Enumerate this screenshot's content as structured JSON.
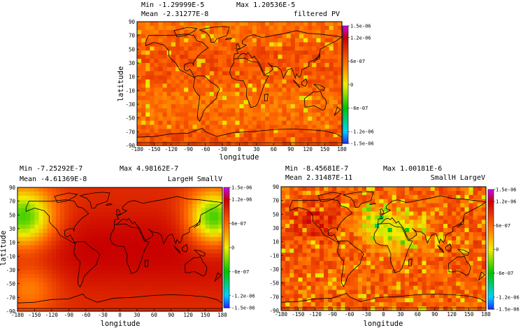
{
  "chart_data": [
    {
      "type": "heatmap",
      "min_label": "Min -1.29999E-5",
      "max_label": "Max 1.20536E-5",
      "mean_label": "Mean -2.31277E-8",
      "title": "filtered PV",
      "xlabel": "longitude",
      "ylabel": "latitude",
      "xlim": [
        -180,
        180
      ],
      "ylim": [
        -90,
        90
      ],
      "x_ticks": [
        "-180",
        "-150",
        "-120",
        "-90",
        "-60",
        "-30",
        "0",
        "30",
        "60",
        "90",
        "120",
        "150",
        "180"
      ],
      "y_ticks": [
        "90",
        "70",
        "50",
        "30",
        "10",
        "-10",
        "-30",
        "-50",
        "-70",
        "-90"
      ],
      "colorbar_ticks": [
        "1.5e-06",
        "1.2e-06",
        "6e-07",
        "0",
        "-6e-07",
        "-1.2e-06",
        "-1.5e-06"
      ],
      "colorbar_values": [
        1.5e-06,
        1.2e-06,
        6e-07,
        0,
        -6e-07,
        -1.2e-06,
        -1.5e-06
      ],
      "pattern": "noisy",
      "colors": {
        "vmin": "#1e2aff",
        "low": "#00d0ff",
        "mid_low": "#00c400",
        "zero": "#f2ee00",
        "mid_high": "#ff6600",
        "high": "#c80000",
        "vmax": "#d000ff"
      }
    },
    {
      "type": "heatmap",
      "min_label": "Min -7.25292E-7",
      "max_label": "Max 4.98162E-7",
      "mean_label": "Mean -4.61369E-8",
      "title": "LargeH SmallV",
      "xlabel": "longitude",
      "ylabel": "latitude",
      "xlim": [
        -180,
        180
      ],
      "ylim": [
        -90,
        90
      ],
      "x_ticks": [
        "-180",
        "-150",
        "-120",
        "-90",
        "-60",
        "-30",
        "0",
        "30",
        "60",
        "90",
        "120",
        "150",
        "180"
      ],
      "y_ticks": [
        "90",
        "70",
        "50",
        "30",
        "10",
        "-10",
        "-30",
        "-50",
        "-70",
        "-90"
      ],
      "colorbar_ticks": [
        "1.5e-06",
        "1.2e-06",
        "6e-07",
        "0",
        "-6e-07",
        "-1.2e-06",
        "-1.5e-06"
      ],
      "colorbar_values": [
        1.5e-06,
        1.2e-06,
        6e-07,
        0,
        -6e-07,
        -1.2e-06,
        -1.5e-06
      ],
      "pattern": "smooth",
      "colors": {
        "vmin": "#1e2aff",
        "low": "#00d0ff",
        "mid_low": "#00c400",
        "zero": "#f2ee00",
        "mid_high": "#ff6600",
        "high": "#c80000",
        "vmax": "#d000ff"
      }
    },
    {
      "type": "heatmap",
      "min_label": "Min -8.45681E-7",
      "max_label": "Max 1.00181E-6",
      "mean_label": "Mean 2.31487E-11",
      "title": "SmallH LargeV",
      "xlabel": "longitude",
      "ylabel": "latitude",
      "xlim": [
        -180,
        180
      ],
      "ylim": [
        -90,
        90
      ],
      "x_ticks": [
        "-180",
        "-150",
        "-120",
        "-90",
        "-60",
        "-30",
        "0",
        "30",
        "60",
        "90",
        "120",
        "150",
        "180"
      ],
      "y_ticks": [
        "90",
        "70",
        "50",
        "30",
        "10",
        "-10",
        "-30",
        "-50",
        "-70",
        "-90"
      ],
      "colorbar_ticks": [
        "1.5e-06",
        "1.2e-06",
        "6e-07",
        "0",
        "-6e-07",
        "-1.2e-06",
        "-1.5e-06"
      ],
      "colorbar_values": [
        1.5e-06,
        1.2e-06,
        6e-07,
        0,
        -6e-07,
        -1.2e-06,
        -1.5e-06
      ],
      "pattern": "patchy",
      "colors": {
        "vmin": "#1e2aff",
        "low": "#00d0ff",
        "mid_low": "#00c400",
        "zero": "#f2ee00",
        "mid_high": "#ff6600",
        "high": "#c80000",
        "vmax": "#d000ff"
      }
    }
  ]
}
